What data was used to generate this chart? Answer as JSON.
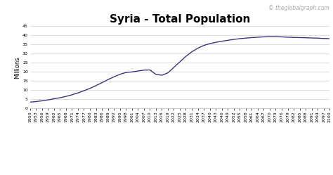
{
  "title": "Syria - Total Population",
  "ylabel": "Millions",
  "watermark": "© theglobalgraph.com",
  "line_color": "#3d3580",
  "background_color": "#ffffff",
  "grid_color": "#d0d0d0",
  "ylim": [
    0,
    45
  ],
  "yticks": [
    0,
    5,
    10,
    15,
    20,
    25,
    30,
    35,
    40,
    45
  ],
  "years": [
    1950,
    1953,
    1956,
    1959,
    1962,
    1965,
    1968,
    1971,
    1974,
    1977,
    1980,
    1983,
    1986,
    1989,
    1992,
    1995,
    1998,
    2001,
    2004,
    2007,
    2010,
    2013,
    2016,
    2019,
    2022,
    2025,
    2028,
    2031,
    2034,
    2037,
    2040,
    2043,
    2046,
    2049,
    2052,
    2055,
    2058,
    2061,
    2064,
    2067,
    2070,
    2073,
    2076,
    2079,
    2082,
    2085,
    2088,
    2091,
    2094,
    2097,
    2100
  ],
  "values": [
    3.5,
    3.8,
    4.2,
    4.7,
    5.3,
    5.9,
    6.6,
    7.5,
    8.5,
    9.7,
    11.0,
    12.5,
    14.1,
    15.8,
    17.3,
    18.7,
    19.7,
    20.0,
    20.5,
    21.0,
    21.1,
    18.7,
    18.2,
    19.5,
    22.5,
    25.5,
    28.5,
    31.0,
    33.0,
    34.5,
    35.5,
    36.2,
    36.8,
    37.3,
    37.8,
    38.2,
    38.5,
    38.8,
    39.0,
    39.2,
    39.3,
    39.3,
    39.2,
    39.0,
    38.9,
    38.8,
    38.7,
    38.6,
    38.5,
    38.3,
    38.2
  ],
  "xtick_labels": [
    "1950",
    "1953",
    "1956",
    "1959",
    "1962",
    "1965",
    "1968",
    "1971",
    "1974",
    "1977",
    "1980",
    "1983",
    "1986",
    "1989",
    "1992",
    "1995",
    "1998",
    "2001",
    "2004",
    "2007",
    "2010",
    "2013",
    "2016",
    "2019",
    "2022",
    "2025",
    "2028",
    "2031",
    "2034",
    "2037",
    "2040",
    "2043",
    "2046",
    "2049",
    "2052",
    "2055",
    "2058",
    "2061",
    "2064",
    "2067",
    "2070",
    "2073",
    "2076",
    "2079",
    "2082",
    "2085",
    "2088",
    "2091",
    "2094",
    "2097",
    "2100"
  ],
  "title_fontsize": 11,
  "label_fontsize": 6,
  "tick_fontsize": 4.5,
  "watermark_fontsize": 5.5,
  "border_color": "#bbbbbb"
}
